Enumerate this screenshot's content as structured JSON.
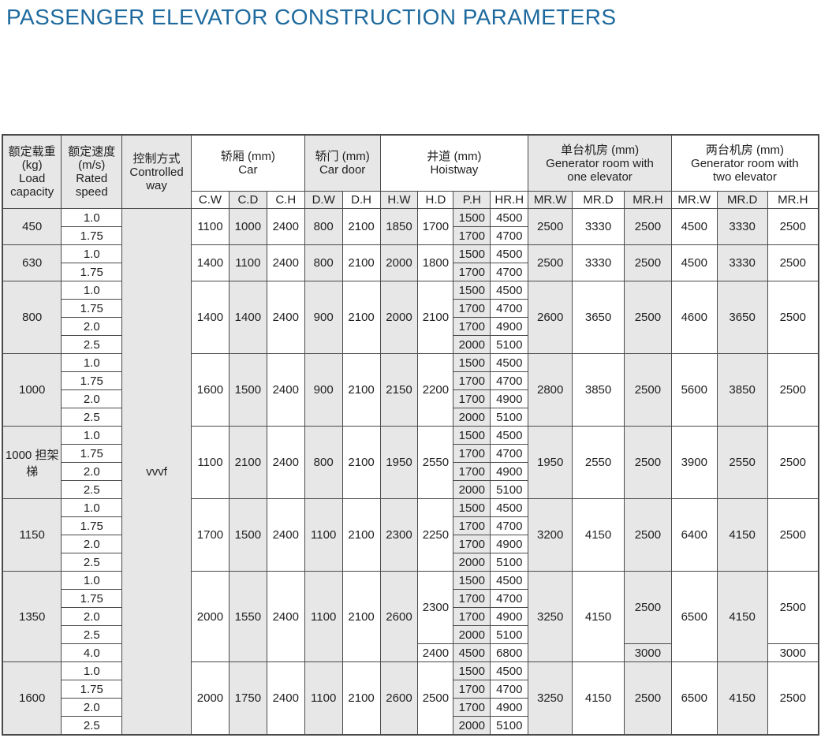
{
  "title": "PASSENGER ELEVATOR CONSTRUCTION PARAMETERS",
  "table": {
    "controlled_way": "vvvf",
    "header": {
      "groups": [
        {
          "name": "load-capacity",
          "lines": [
            "额定载重",
            "(kg)",
            "Load",
            "capacity"
          ],
          "colspan": 1,
          "rowspan": 2,
          "shade": true
        },
        {
          "name": "rated-speed",
          "lines": [
            "额定速度",
            "(m/s)",
            "Rated",
            "speed"
          ],
          "colspan": 1,
          "rowspan": 2,
          "shade": true
        },
        {
          "name": "controlled-way",
          "lines": [
            "控制方式",
            "Controlled",
            "way"
          ],
          "colspan": 1,
          "rowspan": 2,
          "shade": true
        },
        {
          "name": "car",
          "lines": [
            "轿厢 (mm)",
            "Car"
          ],
          "colspan": 3,
          "rowspan": 1,
          "shade": false
        },
        {
          "name": "car-door",
          "lines": [
            "轿门 (mm)",
            "Car door"
          ],
          "colspan": 2,
          "rowspan": 1,
          "shade": true
        },
        {
          "name": "hoistway",
          "lines": [
            "井道 (mm)",
            "Hoistway"
          ],
          "colspan": 4,
          "rowspan": 1,
          "shade": false
        },
        {
          "name": "generator-room-one",
          "lines": [
            "单台机房 (mm)",
            "Generator room with",
            "one elevator"
          ],
          "colspan": 3,
          "rowspan": 1,
          "shade": true
        },
        {
          "name": "generator-room-two",
          "lines": [
            "两台机房 (mm)",
            "Generator room with",
            "two elevator"
          ],
          "colspan": 3,
          "rowspan": 1,
          "shade": false
        }
      ],
      "sub_columns": [
        "C.W",
        "C.D",
        "C.H",
        "D.W",
        "D.H",
        "H.W",
        "H.D",
        "P.H",
        "HR.H",
        "MR.W",
        "MR.D",
        "MR.H",
        "MR.W",
        "MR.D",
        "MR.H"
      ]
    },
    "rows": [
      {
        "load": "450",
        "speeds": [
          "1.0",
          "1.75"
        ],
        "car": [
          "1100",
          "1000",
          "2400"
        ],
        "door": [
          "800",
          "2100"
        ],
        "hoistway_w": "1850",
        "hoistway_d": [
          {
            "value": "1700",
            "rows": 2
          }
        ],
        "pit_and_headroom": [
          [
            "1500",
            "4500"
          ],
          [
            "1700",
            "4700"
          ]
        ],
        "machine_room_one": {
          "w": "2500",
          "d": "3330",
          "h": [
            {
              "value": "2500",
              "rows": 2
            }
          ]
        },
        "machine_room_two": {
          "w": "4500",
          "d": "3330",
          "h": [
            {
              "value": "2500",
              "rows": 2
            }
          ]
        }
      },
      {
        "load": "630",
        "speeds": [
          "1.0",
          "1.75"
        ],
        "car": [
          "1400",
          "1100",
          "2400"
        ],
        "door": [
          "800",
          "2100"
        ],
        "hoistway_w": "2000",
        "hoistway_d": [
          {
            "value": "1800",
            "rows": 2
          }
        ],
        "pit_and_headroom": [
          [
            "1500",
            "4500"
          ],
          [
            "1700",
            "4700"
          ]
        ],
        "machine_room_one": {
          "w": "2500",
          "d": "3330",
          "h": [
            {
              "value": "2500",
              "rows": 2
            }
          ]
        },
        "machine_room_two": {
          "w": "4500",
          "d": "3330",
          "h": [
            {
              "value": "2500",
              "rows": 2
            }
          ]
        }
      },
      {
        "load": "800",
        "speeds": [
          "1.0",
          "1.75",
          "2.0",
          "2.5"
        ],
        "car": [
          "1400",
          "1400",
          "2400"
        ],
        "door": [
          "900",
          "2100"
        ],
        "hoistway_w": "2000",
        "hoistway_d": [
          {
            "value": "2100",
            "rows": 4
          }
        ],
        "pit_and_headroom": [
          [
            "1500",
            "4500"
          ],
          [
            "1700",
            "4700"
          ],
          [
            "1700",
            "4900"
          ],
          [
            "2000",
            "5100"
          ]
        ],
        "machine_room_one": {
          "w": "2600",
          "d": "3650",
          "h": [
            {
              "value": "2500",
              "rows": 4
            }
          ]
        },
        "machine_room_two": {
          "w": "4600",
          "d": "3650",
          "h": [
            {
              "value": "2500",
              "rows": 4
            }
          ]
        }
      },
      {
        "load": "1000",
        "speeds": [
          "1.0",
          "1.75",
          "2.0",
          "2.5"
        ],
        "car": [
          "1600",
          "1500",
          "2400"
        ],
        "door": [
          "900",
          "2100"
        ],
        "hoistway_w": "2150",
        "hoistway_d": [
          {
            "value": "2200",
            "rows": 4
          }
        ],
        "pit_and_headroom": [
          [
            "1500",
            "4500"
          ],
          [
            "1700",
            "4700"
          ],
          [
            "1700",
            "4900"
          ],
          [
            "2000",
            "5100"
          ]
        ],
        "machine_room_one": {
          "w": "2800",
          "d": "3850",
          "h": [
            {
              "value": "2500",
              "rows": 4
            }
          ]
        },
        "machine_room_two": {
          "w": "5600",
          "d": "3850",
          "h": [
            {
              "value": "2500",
              "rows": 4
            }
          ]
        }
      },
      {
        "load": "1000 担架梯",
        "speeds": [
          "1.0",
          "1.75",
          "2.0",
          "2.5"
        ],
        "car": [
          "1100",
          "2100",
          "2400"
        ],
        "door": [
          "800",
          "2100"
        ],
        "hoistway_w": "1950",
        "hoistway_d": [
          {
            "value": "2550",
            "rows": 4
          }
        ],
        "pit_and_headroom": [
          [
            "1500",
            "4500"
          ],
          [
            "1700",
            "4700"
          ],
          [
            "1700",
            "4900"
          ],
          [
            "2000",
            "5100"
          ]
        ],
        "machine_room_one": {
          "w": "1950",
          "d": "2550",
          "h": [
            {
              "value": "2500",
              "rows": 4
            }
          ]
        },
        "machine_room_two": {
          "w": "3900",
          "d": "2550",
          "h": [
            {
              "value": "2500",
              "rows": 4
            }
          ]
        }
      },
      {
        "load": "1150",
        "speeds": [
          "1.0",
          "1.75",
          "2.0",
          "2.5"
        ],
        "car": [
          "1700",
          "1500",
          "2400"
        ],
        "door": [
          "1100",
          "2100"
        ],
        "hoistway_w": "2300",
        "hoistway_d": [
          {
            "value": "2250",
            "rows": 4
          }
        ],
        "pit_and_headroom": [
          [
            "1500",
            "4500"
          ],
          [
            "1700",
            "4700"
          ],
          [
            "1700",
            "4900"
          ],
          [
            "2000",
            "5100"
          ]
        ],
        "machine_room_one": {
          "w": "3200",
          "d": "4150",
          "h": [
            {
              "value": "2500",
              "rows": 4
            }
          ]
        },
        "machine_room_two": {
          "w": "6400",
          "d": "4150",
          "h": [
            {
              "value": "2500",
              "rows": 4
            }
          ]
        }
      },
      {
        "load": "1350",
        "speeds": [
          "1.0",
          "1.75",
          "2.0",
          "2.5",
          "4.0"
        ],
        "car": [
          "2000",
          "1550",
          "2400"
        ],
        "door": [
          "1100",
          "2100"
        ],
        "hoistway_w": "2600",
        "hoistway_d": [
          {
            "value": "2300",
            "rows": 4
          },
          {
            "value": "2400",
            "rows": 1
          }
        ],
        "pit_and_headroom": [
          [
            "1500",
            "4500"
          ],
          [
            "1700",
            "4700"
          ],
          [
            "1700",
            "4900"
          ],
          [
            "2000",
            "5100"
          ],
          [
            "4500",
            "6800"
          ]
        ],
        "machine_room_one": {
          "w": "3250",
          "d": "4150",
          "h": [
            {
              "value": "2500",
              "rows": 4
            },
            {
              "value": "3000",
              "rows": 1
            }
          ]
        },
        "machine_room_two": {
          "w": "6500",
          "d": "4150",
          "h": [
            {
              "value": "2500",
              "rows": 4
            },
            {
              "value": "3000",
              "rows": 1
            }
          ]
        }
      },
      {
        "load": "1600",
        "speeds": [
          "1.0",
          "1.75",
          "2.0",
          "2.5"
        ],
        "car": [
          "2000",
          "1750",
          "2400"
        ],
        "door": [
          "1100",
          "2100"
        ],
        "hoistway_w": "2600",
        "hoistway_d": [
          {
            "value": "2500",
            "rows": 4
          }
        ],
        "pit_and_headroom": [
          [
            "1500",
            "4500"
          ],
          [
            "1700",
            "4700"
          ],
          [
            "1700",
            "4900"
          ],
          [
            "2000",
            "5100"
          ]
        ],
        "machine_room_one": {
          "w": "3250",
          "d": "4150",
          "h": [
            {
              "value": "2500",
              "rows": 4
            }
          ]
        },
        "machine_room_two": {
          "w": "6500",
          "d": "4150",
          "h": [
            {
              "value": "2500",
              "rows": 4
            }
          ]
        }
      }
    ]
  }
}
